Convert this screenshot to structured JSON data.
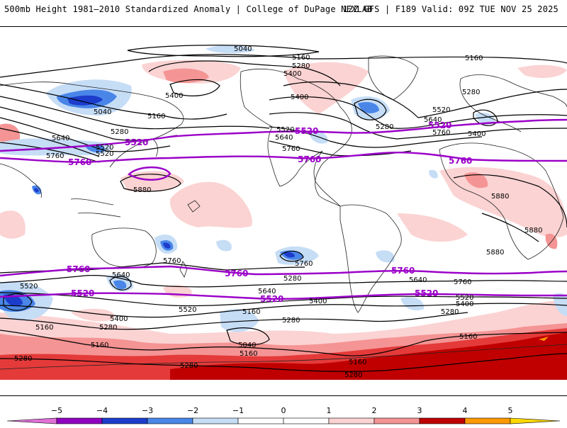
{
  "header": {
    "left": "500mb Height 1981–2010 Standardized Anomaly | College of DuPage NEXLAB",
    "right": "12Z GFS | F189 Valid: 09Z TUE NOV 25 2025"
  },
  "colors": {
    "neg5": "#e070d8",
    "neg4": "#9000c0",
    "neg3": "#1c3ccc",
    "neg2": "#4a86e8",
    "neg1": "#c6ddf6",
    "zero": "#ffffff",
    "pos1": "#fbd3d3",
    "pos2": "#f59494",
    "pos3": "#e43a3a",
    "pos4": "#c00000",
    "pos5": "#ff9900",
    "purple_contour": "#9b00c8",
    "black_contour": "#000000"
  },
  "contour_labels": {
    "black": [
      {
        "id": "l1",
        "text": "5040"
      },
      {
        "id": "l2",
        "text": "5160"
      },
      {
        "id": "l3",
        "text": "5160"
      },
      {
        "id": "l4",
        "text": "5280"
      },
      {
        "id": "l5",
        "text": "5400"
      },
      {
        "id": "l6",
        "text": "5400"
      },
      {
        "id": "l7",
        "text": "5040"
      },
      {
        "id": "l8",
        "text": "5160"
      },
      {
        "id": "l9",
        "text": "5280"
      },
      {
        "id": "l10",
        "text": "5400"
      },
      {
        "id": "l11",
        "text": "5520"
      },
      {
        "id": "l12",
        "text": "5640"
      },
      {
        "id": "l13",
        "text": "5760"
      },
      {
        "id": "l14",
        "text": "5520"
      },
      {
        "id": "l15",
        "text": "5640"
      },
      {
        "id": "l16",
        "text": "5760"
      },
      {
        "id": "l17",
        "text": "5280"
      },
      {
        "id": "l18",
        "text": "5280"
      },
      {
        "id": "l19",
        "text": "5520"
      },
      {
        "id": "l20",
        "text": "5640"
      },
      {
        "id": "l21",
        "text": "5760"
      },
      {
        "id": "l22",
        "text": "5400"
      },
      {
        "id": "l23",
        "text": "5880"
      },
      {
        "id": "l24",
        "text": "5880"
      },
      {
        "id": "l25",
        "text": "5880"
      },
      {
        "id": "l26",
        "text": "5880"
      },
      {
        "id": "l27",
        "text": "5760"
      },
      {
        "id": "l28",
        "text": "5760"
      },
      {
        "id": "l29",
        "text": "5640"
      },
      {
        "id": "l30",
        "text": "5640"
      },
      {
        "id": "l31",
        "text": "5760"
      },
      {
        "id": "l32",
        "text": "5520"
      },
      {
        "id": "l33",
        "text": "5640"
      },
      {
        "id": "l34",
        "text": "5520"
      },
      {
        "id": "l35",
        "text": "5400"
      },
      {
        "id": "l36",
        "text": "5400"
      },
      {
        "id": "l37",
        "text": "5280"
      },
      {
        "id": "l38",
        "text": "5160"
      },
      {
        "id": "l39",
        "text": "5280"
      },
      {
        "id": "l40",
        "text": "5160"
      },
      {
        "id": "l41",
        "text": "5400"
      },
      {
        "id": "l42",
        "text": "5280"
      },
      {
        "id": "l43",
        "text": "5520"
      },
      {
        "id": "l44",
        "text": "5280"
      },
      {
        "id": "l45",
        "text": "5160"
      },
      {
        "id": "l46",
        "text": "5040"
      },
      {
        "id": "l47",
        "text": "5160"
      },
      {
        "id": "l48",
        "text": "5280"
      },
      {
        "id": "l49",
        "text": "5160"
      },
      {
        "id": "l50",
        "text": "5280"
      },
      {
        "id": "l51",
        "text": "5160"
      },
      {
        "id": "l52",
        "text": "5280"
      },
      {
        "id": "l53",
        "text": "5520"
      }
    ],
    "purple": [
      {
        "id": "p1",
        "text": "5520"
      },
      {
        "id": "p2",
        "text": "5520"
      },
      {
        "id": "p3",
        "text": "5520"
      },
      {
        "id": "p4",
        "text": "5760"
      },
      {
        "id": "p5",
        "text": "5760"
      },
      {
        "id": "p6",
        "text": "5760"
      },
      {
        "id": "p7",
        "text": "5760"
      },
      {
        "id": "p8",
        "text": "5760"
      },
      {
        "id": "p9",
        "text": "5760"
      },
      {
        "id": "p10",
        "text": "5520"
      },
      {
        "id": "p11",
        "text": "5520"
      },
      {
        "id": "p12",
        "text": "5520"
      }
    ]
  },
  "colorbar": {
    "ticks": [
      "−5",
      "−4",
      "−3",
      "−2",
      "−1",
      "0",
      "1",
      "2",
      "3",
      "4",
      "5"
    ]
  }
}
